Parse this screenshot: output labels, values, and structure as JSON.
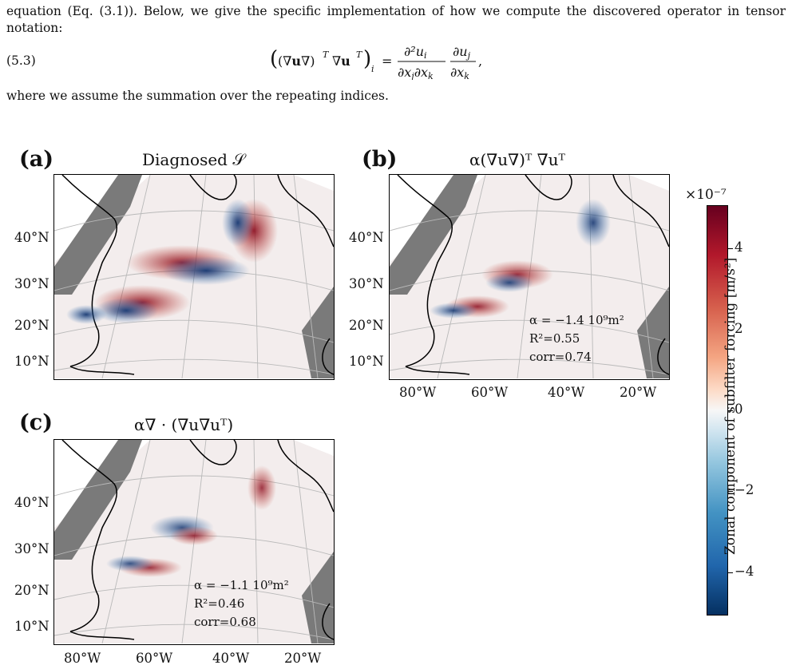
{
  "text": {
    "p1": "equation (Eq. (3.1)). Below, we give the specific implementation of how we compute the discovered operator in tensor notation:",
    "eq_number": "(5.3)",
    "p2": "where we assume the summation over the repeating indices."
  },
  "equation": {
    "lhs": "((∇u∇)ᵀ ∇uᵀ)ᵢ",
    "rhs": "= ∂²uᵢ/∂xⱼ∂xₖ · ∂uⱼ/∂xₖ,"
  },
  "figure": {
    "panels": [
      {
        "label": "(a)",
        "title": "Diagnosed 𝒮",
        "stats": null
      },
      {
        "label": "(b)",
        "title": "α(∇u∇)ᵀ ∇uᵀ",
        "stats": {
          "alpha": "α = −1.4 10⁹m²",
          "r2": "R²=0.55",
          "corr": "corr=0.74"
        }
      },
      {
        "label": "(c)",
        "title": "α∇ · (∇u∇uᵀ)",
        "stats": {
          "alpha": "α = −1.1 10⁹m²",
          "r2": "R²=0.46",
          "corr": "corr=0.68"
        }
      }
    ],
    "lat_ticks": [
      "40°N",
      "30°N",
      "20°N",
      "10°N"
    ],
    "lon_ticks": [
      "80°W",
      "60°W",
      "40°W",
      "20°W"
    ],
    "colorbar": {
      "exponent": "×10⁻⁷",
      "ticks": [
        "4",
        "2",
        "0",
        "−2",
        "−4"
      ],
      "label": "Zonal component of subfilter forcing [m/s²]"
    }
  }
}
